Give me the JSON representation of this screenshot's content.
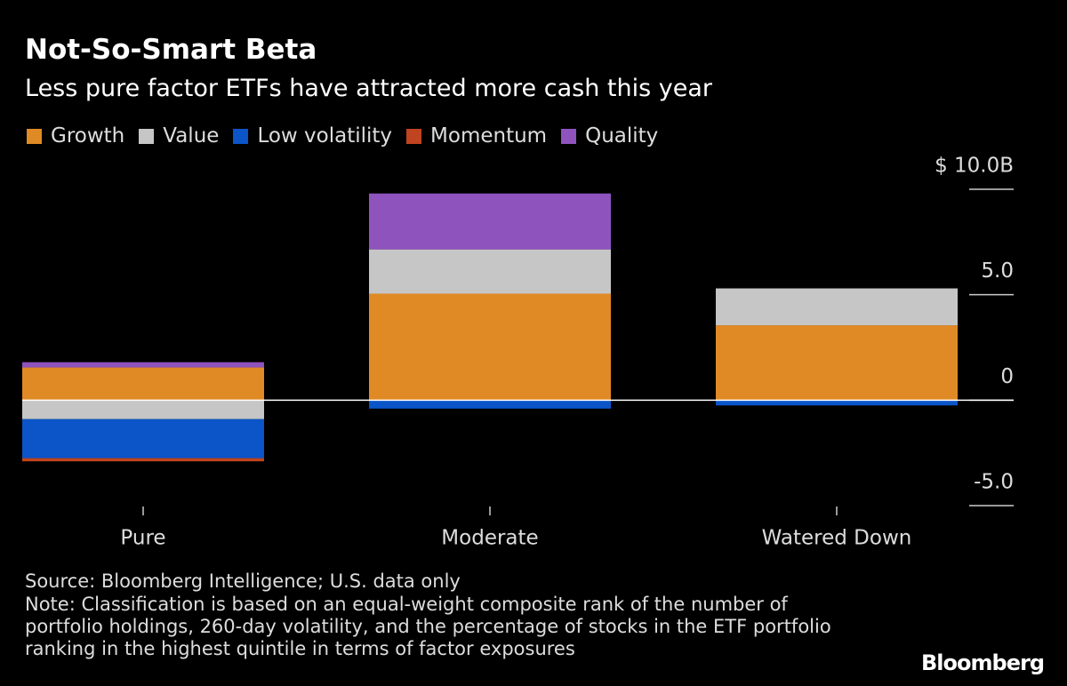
{
  "chart_data": {
    "type": "stacked_bar",
    "title": "Not-So-Smart Beta",
    "subtitle": "Less pure factor ETFs have attracted more cash this year",
    "categories": [
      "Pure",
      "Moderate",
      "Watered Down"
    ],
    "series": [
      {
        "name": "Growth",
        "color": "#e08a25",
        "values": [
          1.55,
          5.05,
          3.55
        ]
      },
      {
        "name": "Value",
        "color": "#c6c6c6",
        "values": [
          -0.9,
          2.1,
          1.75
        ]
      },
      {
        "name": "Low volatility",
        "color": "#0b55c9",
        "values": [
          -1.85,
          -0.4,
          -0.25
        ]
      },
      {
        "name": "Momentum",
        "color": "#c0441f",
        "values": [
          -0.15,
          0,
          0
        ]
      },
      {
        "name": "Quality",
        "color": "#8f53be",
        "values": [
          0.25,
          2.65,
          0
        ]
      }
    ],
    "ylim": [
      -5.0,
      10.0
    ],
    "yticks": [
      {
        "value": -5.0,
        "label": "-5.0"
      },
      0,
      {
        "value": 5.0,
        "label": "5.0"
      },
      {
        "value": 10.0,
        "label": "$ 10.0B"
      }
    ],
    "source": "Source: Bloomberg Intelligence; U.S. data only",
    "note": "Note: Classification is based on an equal-weight composite rank of the number of portfolio holdings, 260-day volatility, and the percentage of stocks in the ETF portfolio ranking in the highest quintile in terms of factor exposures",
    "brand": "Bloomberg"
  }
}
